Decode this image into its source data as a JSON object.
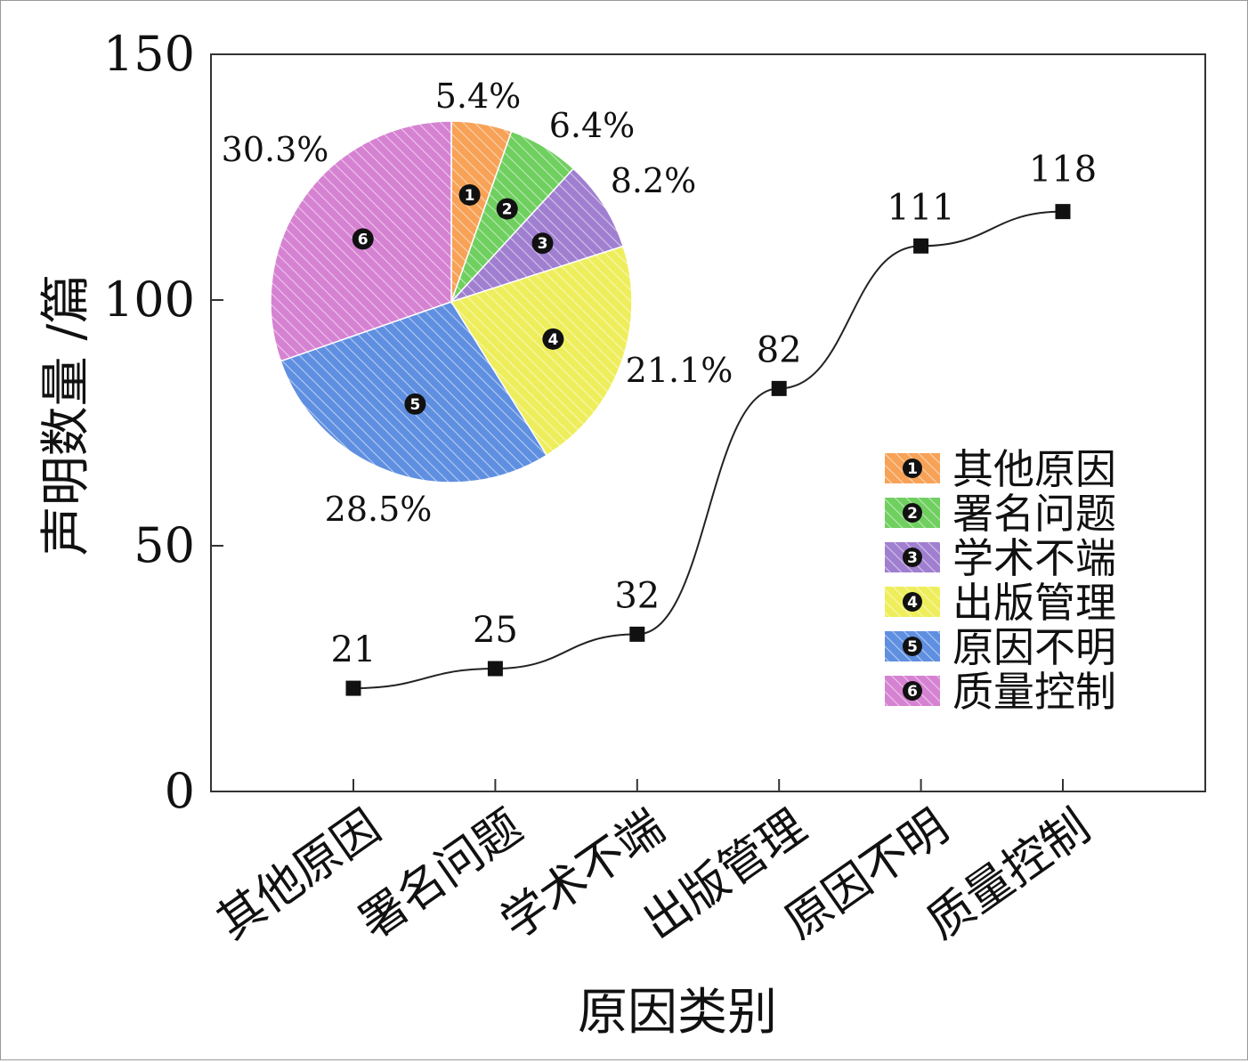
{
  "chart_data": {
    "type": "line",
    "xlabel": "原因类别",
    "ylabel": "声明数量 /篇",
    "ylim": [
      0,
      150
    ],
    "yticks": [
      0,
      50,
      100,
      150
    ],
    "categories": [
      "其他原因",
      "署名问题",
      "学术不端",
      "出版管理",
      "原因不明",
      "质量控制"
    ],
    "series": [
      {
        "values": [
          21,
          25,
          32,
          82,
          111,
          118
        ]
      }
    ],
    "data_labels": [
      "21",
      "25",
      "32",
      "82",
      "111",
      "118"
    ],
    "line_color": "#222222",
    "marker": "square",
    "grid": false,
    "inset_pie": {
      "type": "pie",
      "slices": [
        {
          "id": "1",
          "name": "其他原因",
          "value": 5.4,
          "label": "5.4%",
          "color": "#f7a257"
        },
        {
          "id": "2",
          "name": "署名问题",
          "value": 6.4,
          "label": "6.4%",
          "color": "#6fcf5f"
        },
        {
          "id": "3",
          "name": "学术不端",
          "value": 8.2,
          "label": "8.2%",
          "color": "#a07fd0"
        },
        {
          "id": "4",
          "name": "出版管理",
          "value": 21.1,
          "label": "21.1%",
          "color": "#eeee5c"
        },
        {
          "id": "5",
          "name": "原因不明",
          "value": 28.5,
          "label": "28.5%",
          "color": "#5f8fe0"
        },
        {
          "id": "6",
          "name": "质量控制",
          "value": 30.3,
          "label": "30.3%",
          "color": "#d682d2"
        }
      ],
      "hatch": true,
      "legend_position": "right"
    }
  }
}
